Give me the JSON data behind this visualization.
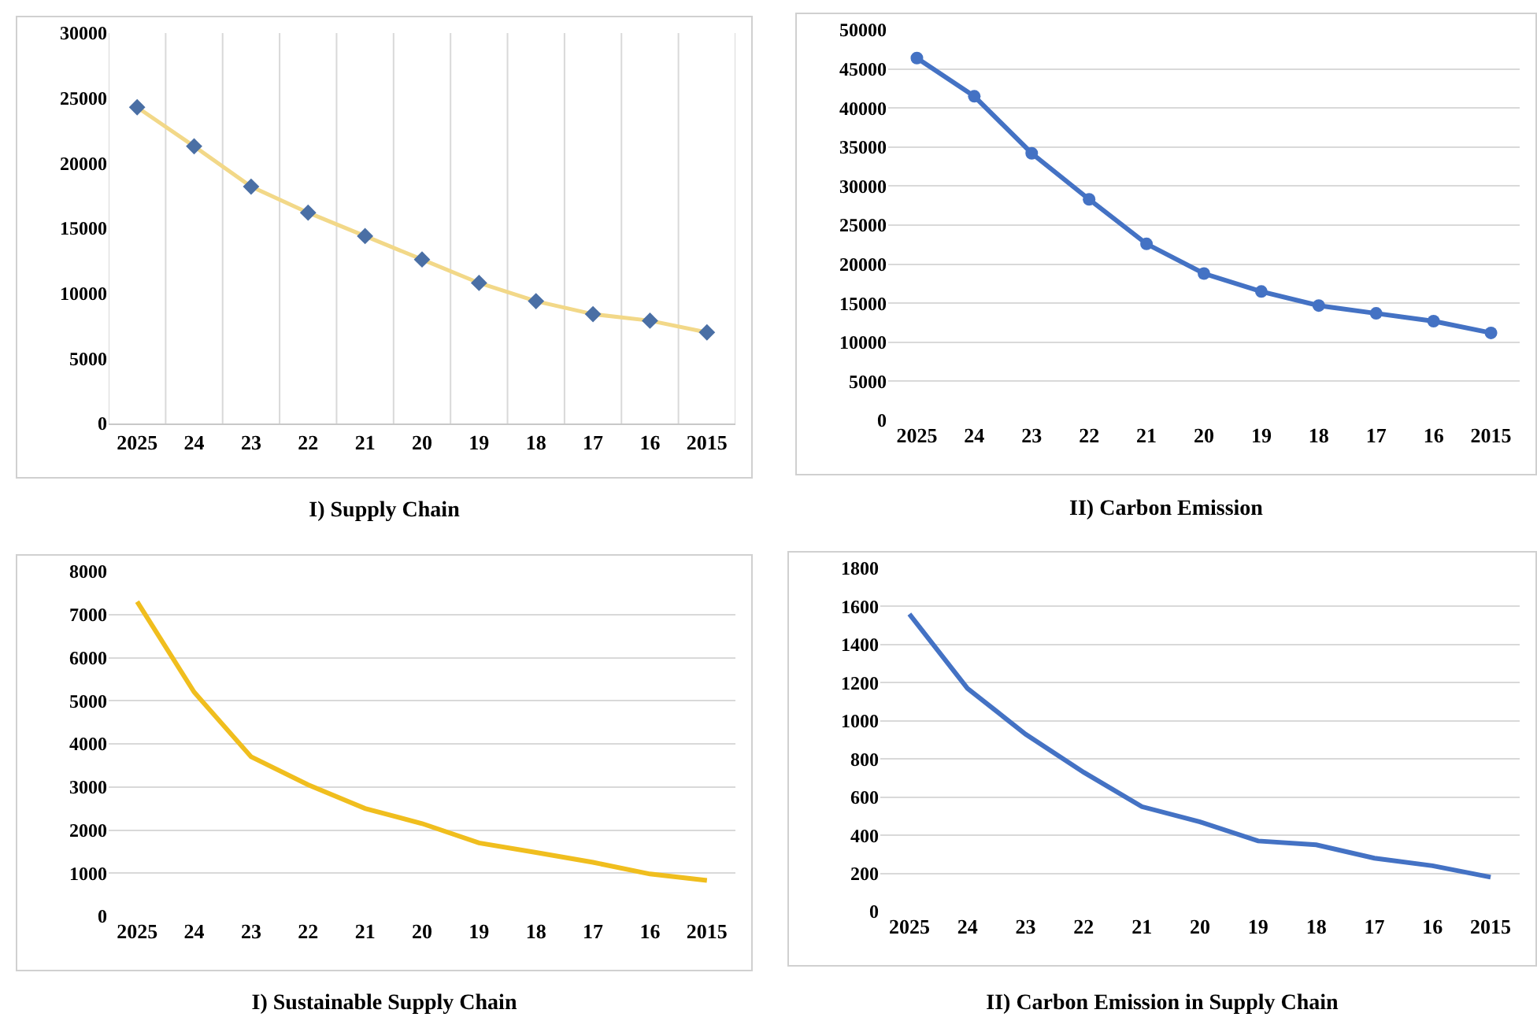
{
  "chart_data": [
    {
      "type": "line",
      "title": "I) Supply Chain",
      "categories": [
        "2025",
        "24",
        "23",
        "22",
        "21",
        "20",
        "19",
        "18",
        "17",
        "16",
        "2015"
      ],
      "series": [
        {
          "color": "#f2d888",
          "colors": [
            "#4a6fa5",
            "#4a6fa5",
            "#4a6fa5",
            "#4a6fa5",
            "#4a6fa5",
            "#4a6fa5",
            "#4a6fa5",
            "#4a6fa5",
            "#4a6fa5",
            "#4a6fa5",
            "#4a6fa5"
          ],
          "values": [
            24300,
            21300,
            18200,
            16200,
            14400,
            12600,
            10800,
            9400,
            8400,
            7900,
            7000
          ]
        }
      ],
      "marker": "diamond",
      "ylim": [
        0,
        30000
      ],
      "yticks": [
        0,
        5000,
        10000,
        15000,
        20000,
        25000,
        30000
      ],
      "grid": "x"
    },
    {
      "type": "line",
      "title": "II) Carbon Emission",
      "categories": [
        "2025",
        "24",
        "23",
        "22",
        "21",
        "20",
        "19",
        "18",
        "17",
        "16",
        "2015"
      ],
      "series": [
        {
          "color": "#4472c4",
          "values": [
            46400,
            41500,
            34200,
            28300,
            22600,
            18800,
            16500,
            14700,
            13700,
            12700,
            11200
          ]
        }
      ],
      "marker": "circle",
      "ylim": [
        0,
        50000
      ],
      "yticks": [
        0,
        5000,
        10000,
        15000,
        20000,
        25000,
        30000,
        35000,
        40000,
        45000,
        50000
      ],
      "grid": "y"
    },
    {
      "type": "line",
      "title": "I) Sustainable Supply Chain",
      "categories": [
        "2025",
        "24",
        "23",
        "22",
        "21",
        "20",
        "19",
        "18",
        "17",
        "16",
        "2015"
      ],
      "series": [
        {
          "color": "#f0be1e",
          "values": [
            7300,
            5200,
            3700,
            3050,
            2500,
            2150,
            1700,
            1480,
            1250,
            980,
            830
          ]
        }
      ],
      "ylim": [
        0,
        8000
      ],
      "yticks": [
        0,
        1000,
        2000,
        3000,
        4000,
        5000,
        6000,
        7000,
        8000
      ],
      "grid": "y"
    },
    {
      "type": "line",
      "title": "II) Carbon Emission in Supply Chain",
      "categories": [
        "2025",
        "24",
        "23",
        "22",
        "21",
        "20",
        "19",
        "18",
        "17",
        "16",
        "2015"
      ],
      "series": [
        {
          "color": "#4472c4",
          "values": [
            1560,
            1170,
            930,
            730,
            550,
            470,
            370,
            350,
            280,
            240,
            180
          ]
        }
      ],
      "ylim": [
        0,
        1800
      ],
      "yticks": [
        0,
        200,
        400,
        600,
        800,
        1000,
        1200,
        1400,
        1600,
        1800
      ],
      "grid": "y"
    }
  ]
}
